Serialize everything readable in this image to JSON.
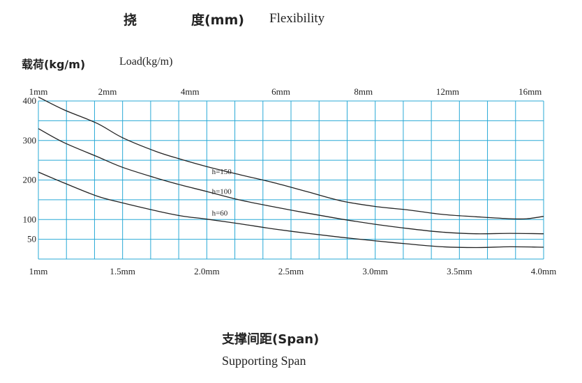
{
  "title": {
    "cn_1": "挠",
    "cn_2": "度(mm)",
    "en": "Flexibility"
  },
  "y_title": {
    "cn": "载荷(kg/m)",
    "en": "Load(kg/m)"
  },
  "x_title": {
    "cn": "支撑间距(Span)",
    "en": "Supporting Span"
  },
  "colors": {
    "grid": "#29a9d6",
    "curve": "#222222"
  },
  "chart_data": {
    "type": "line",
    "x_range": [
      1.0,
      4.0
    ],
    "y_range": [
      0,
      400
    ],
    "x_ticks": [
      {
        "value": 1.0,
        "label": "1mm"
      },
      {
        "value": 1.5,
        "label": "1.5mm"
      },
      {
        "value": 2.0,
        "label": "2.0mm"
      },
      {
        "value": 2.5,
        "label": "2.5mm"
      },
      {
        "value": 3.0,
        "label": "3.0mm"
      },
      {
        "value": 3.5,
        "label": "3.5mm"
      },
      {
        "value": 4.0,
        "label": "4.0mm"
      }
    ],
    "y_ticks": [
      {
        "value": 400,
        "label": "400"
      },
      {
        "value": 300,
        "label": "300"
      },
      {
        "value": 200,
        "label": "200"
      },
      {
        "value": 100,
        "label": "100"
      },
      {
        "value": 50,
        "label": "50"
      }
    ],
    "top_ticks": [
      {
        "value": 1.0,
        "label": "1mm"
      },
      {
        "value": 1.41,
        "label": "2mm"
      },
      {
        "value": 1.9,
        "label": "4mm"
      },
      {
        "value": 2.44,
        "label": "6mm"
      },
      {
        "value": 2.93,
        "label": "8mm"
      },
      {
        "value": 3.43,
        "label": "12mm"
      },
      {
        "value": 3.92,
        "label": "16mm"
      }
    ],
    "series": [
      {
        "name": "h=150",
        "points": [
          [
            1.0,
            410
          ],
          [
            1.15,
            378
          ],
          [
            1.35,
            343
          ],
          [
            1.5,
            307
          ],
          [
            1.7,
            272
          ],
          [
            1.85,
            252
          ],
          [
            2.0,
            234
          ],
          [
            2.2,
            213
          ],
          [
            2.4,
            193
          ],
          [
            2.6,
            170
          ],
          [
            2.8,
            147
          ],
          [
            3.0,
            133
          ],
          [
            3.2,
            124
          ],
          [
            3.4,
            113
          ],
          [
            3.6,
            107
          ],
          [
            3.8,
            102
          ],
          [
            3.9,
            102
          ],
          [
            4.0,
            108
          ]
        ]
      },
      {
        "name": "h=100",
        "points": [
          [
            1.0,
            330
          ],
          [
            1.15,
            295
          ],
          [
            1.35,
            259
          ],
          [
            1.5,
            232
          ],
          [
            1.7,
            205
          ],
          [
            1.85,
            187
          ],
          [
            2.0,
            171
          ],
          [
            2.2,
            149
          ],
          [
            2.4,
            132
          ],
          [
            2.6,
            116
          ],
          [
            2.8,
            101
          ],
          [
            3.0,
            88
          ],
          [
            3.2,
            77
          ],
          [
            3.4,
            68
          ],
          [
            3.6,
            64
          ],
          [
            3.8,
            65
          ],
          [
            4.0,
            64
          ]
        ]
      },
      {
        "name": "h=60",
        "points": [
          [
            1.0,
            220
          ],
          [
            1.15,
            193
          ],
          [
            1.35,
            159
          ],
          [
            1.5,
            142
          ],
          [
            1.7,
            122
          ],
          [
            1.85,
            109
          ],
          [
            2.0,
            101
          ],
          [
            2.2,
            89
          ],
          [
            2.4,
            76
          ],
          [
            2.6,
            65
          ],
          [
            2.8,
            55
          ],
          [
            3.0,
            46
          ],
          [
            3.2,
            38
          ],
          [
            3.4,
            31
          ],
          [
            3.6,
            29
          ],
          [
            3.8,
            31
          ],
          [
            4.0,
            30
          ]
        ]
      }
    ],
    "series_labels": [
      {
        "series": "h=150",
        "text": "h=150",
        "at": [
          2.03,
          215
        ]
      },
      {
        "series": "h=100",
        "text": "h=100",
        "at": [
          2.03,
          165
        ]
      },
      {
        "series": "h=60",
        "text": "h=60",
        "at": [
          2.03,
          110
        ]
      }
    ]
  }
}
